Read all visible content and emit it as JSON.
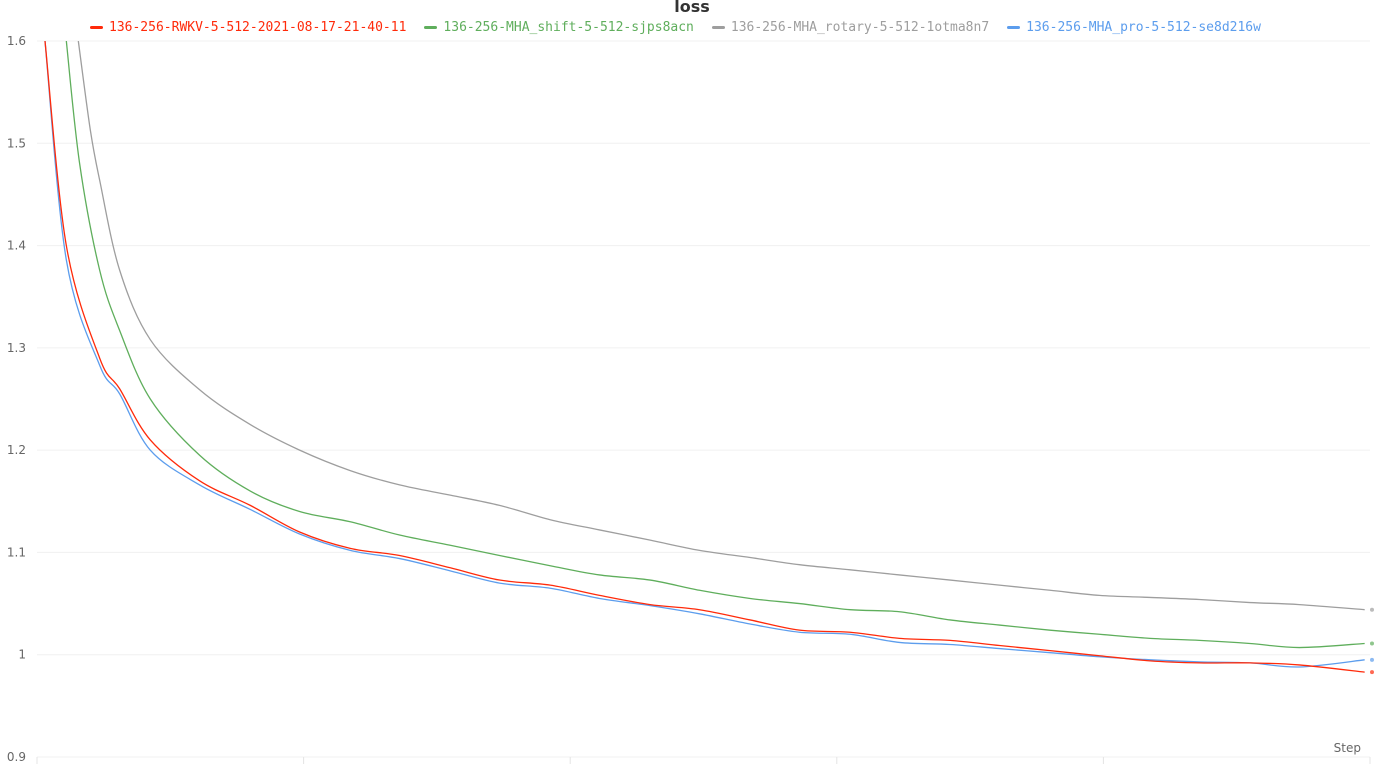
{
  "chart_data": {
    "type": "line",
    "title": "loss",
    "xlabel": "Step",
    "ylabel": "",
    "ylim": [
      0.9,
      1.6
    ],
    "xlim": [
      0,
      1000
    ],
    "yticks": [
      "0.9",
      "1",
      "1.1",
      "1.2",
      "1.3",
      "1.4",
      "1.5",
      "1.6"
    ],
    "grid": true,
    "legend": "top",
    "series": [
      {
        "name": "136-256-RWKV-5-512-2021-08-17-21-40-11",
        "color": "#ff2a0a",
        "x": [
          6,
          22,
          47,
          62,
          85,
          122,
          160,
          197,
          235,
          272,
          310,
          347,
          385,
          422,
          460,
          497,
          535,
          572,
          610,
          647,
          685,
          722,
          760,
          797,
          835,
          872,
          910,
          947,
          996
        ],
        "y": [
          1.6,
          1.4,
          1.29,
          1.26,
          1.21,
          1.17,
          1.146,
          1.12,
          1.104,
          1.097,
          1.085,
          1.073,
          1.068,
          1.058,
          1.049,
          1.044,
          1.034,
          1.024,
          1.022,
          1.016,
          1.014,
          1.009,
          1.004,
          0.999,
          0.994,
          0.992,
          0.992,
          0.99,
          0.983
        ]
      },
      {
        "name": "136-256-MHA_shift-5-512-sjps8acn",
        "color": "#5fae5c",
        "x": [
          22,
          32,
          47,
          62,
          85,
          122,
          160,
          197,
          235,
          272,
          310,
          347,
          385,
          422,
          460,
          497,
          535,
          572,
          610,
          647,
          685,
          722,
          760,
          797,
          835,
          872,
          910,
          947,
          996
        ],
        "y": [
          1.6,
          1.48,
          1.376,
          1.317,
          1.25,
          1.195,
          1.16,
          1.14,
          1.13,
          1.117,
          1.107,
          1.097,
          1.087,
          1.078,
          1.073,
          1.063,
          1.055,
          1.05,
          1.044,
          1.042,
          1.034,
          1.029,
          1.024,
          1.02,
          1.016,
          1.014,
          1.011,
          1.007,
          1.011
        ]
      },
      {
        "name": "136-256-MHA_rotary-5-512-1otma8n7",
        "color": "#9e9e9e",
        "x": [
          31,
          40,
          47,
          62,
          85,
          122,
          160,
          197,
          235,
          272,
          310,
          347,
          385,
          422,
          460,
          497,
          535,
          572,
          610,
          647,
          685,
          722,
          760,
          797,
          835,
          872,
          910,
          947,
          996
        ],
        "y": [
          1.6,
          1.513,
          1.464,
          1.376,
          1.308,
          1.259,
          1.225,
          1.2,
          1.18,
          1.166,
          1.156,
          1.146,
          1.132,
          1.122,
          1.112,
          1.102,
          1.095,
          1.088,
          1.083,
          1.078,
          1.073,
          1.068,
          1.063,
          1.058,
          1.056,
          1.054,
          1.051,
          1.049,
          1.044
        ]
      },
      {
        "name": "136-256-MHA_pro-5-512-se8d216w",
        "color": "#5c9ded",
        "x": [
          6,
          22,
          47,
          62,
          85,
          122,
          160,
          197,
          235,
          272,
          310,
          347,
          385,
          422,
          460,
          497,
          535,
          572,
          610,
          647,
          685,
          722,
          760,
          797,
          835,
          872,
          910,
          947,
          996
        ],
        "y": [
          1.6,
          1.386,
          1.283,
          1.255,
          1.2,
          1.166,
          1.142,
          1.118,
          1.102,
          1.094,
          1.082,
          1.07,
          1.065,
          1.055,
          1.048,
          1.04,
          1.03,
          1.022,
          1.02,
          1.012,
          1.01,
          1.006,
          1.002,
          0.998,
          0.995,
          0.993,
          0.992,
          0.988,
          0.995
        ]
      }
    ]
  }
}
